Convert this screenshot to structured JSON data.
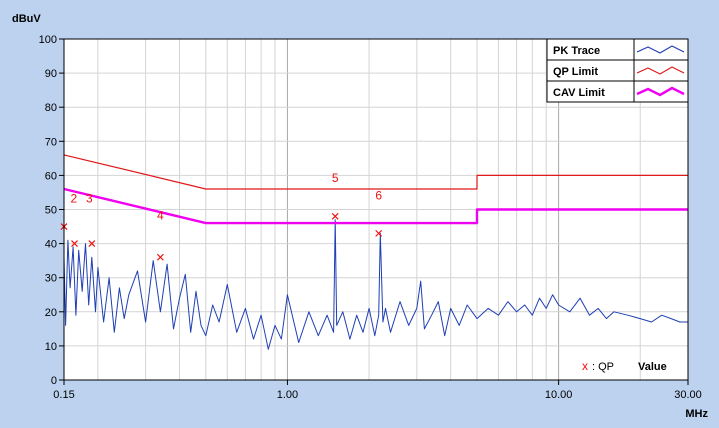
{
  "chart_data": {
    "type": "line",
    "ylabel": "dBuV",
    "xlabel": "MHz",
    "x_scale": "log",
    "xlim": [
      0.15,
      30
    ],
    "ylim": [
      0,
      100
    ],
    "grid": true,
    "legend_position": "top-right",
    "x_tick_labels": [
      {
        "value": 0.15,
        "label": "0.15"
      },
      {
        "value": 1,
        "label": "1.00"
      },
      {
        "value": 10,
        "label": "10.00"
      },
      {
        "value": 30,
        "label": "30.00"
      }
    ],
    "y_ticks": [
      0,
      10,
      20,
      30,
      40,
      50,
      60,
      70,
      80,
      90,
      100
    ],
    "y_tick_labels": [
      "0",
      "10",
      "20",
      "30",
      "40",
      "50",
      "60",
      "70",
      "80",
      "90",
      "100"
    ],
    "series": [
      {
        "name": "PK Trace",
        "color": "#1f3fb5",
        "x": [
          0.15,
          0.152,
          0.155,
          0.158,
          0.162,
          0.166,
          0.17,
          0.175,
          0.18,
          0.185,
          0.19,
          0.196,
          0.2,
          0.21,
          0.22,
          0.23,
          0.24,
          0.25,
          0.26,
          0.28,
          0.3,
          0.32,
          0.34,
          0.36,
          0.38,
          0.4,
          0.42,
          0.44,
          0.46,
          0.48,
          0.5,
          0.53,
          0.56,
          0.6,
          0.65,
          0.7,
          0.75,
          0.8,
          0.85,
          0.9,
          0.95,
          1.0,
          1.1,
          1.2,
          1.3,
          1.4,
          1.48,
          1.5,
          1.52,
          1.6,
          1.7,
          1.8,
          1.9,
          2.0,
          2.1,
          2.17,
          2.2,
          2.25,
          2.3,
          2.4,
          2.6,
          2.8,
          3.0,
          3.1,
          3.2,
          3.4,
          3.6,
          3.8,
          4.0,
          4.3,
          4.6,
          5.0,
          5.5,
          6.0,
          6.5,
          7.0,
          7.5,
          8.0,
          8.5,
          9.0,
          9.5,
          10.0,
          11.0,
          12.0,
          13.0,
          14.0,
          15.0,
          16.0,
          18.0,
          20.0,
          22.0,
          24.0,
          26.0,
          28.0,
          30.0
        ],
        "values": [
          36,
          16,
          41,
          27,
          39,
          19,
          38,
          26,
          40,
          22,
          36,
          20,
          33,
          17,
          30,
          14,
          27,
          18,
          25,
          32,
          17,
          35,
          20,
          34,
          15,
          24,
          31,
          14,
          26,
          16,
          13,
          22,
          17,
          28,
          14,
          21,
          12,
          19,
          9,
          16,
          12,
          25,
          11,
          20,
          13,
          19,
          14,
          47,
          16,
          20,
          12,
          19,
          14,
          21,
          13,
          19,
          43,
          17,
          21,
          14,
          23,
          16,
          21,
          29,
          15,
          19,
          23,
          13,
          21,
          16,
          22,
          18,
          21,
          19,
          23,
          20,
          22,
          19,
          24,
          21,
          25,
          22,
          20,
          24,
          19,
          21,
          18,
          20,
          19,
          18,
          17,
          19,
          18,
          17,
          17
        ]
      },
      {
        "name": "QP Limit",
        "color": "#e01818",
        "x": [
          0.15,
          0.5,
          5,
          5,
          30
        ],
        "values": [
          66,
          56,
          56,
          60,
          60
        ]
      },
      {
        "name": "CAV Limit",
        "color": "#f000f0",
        "x": [
          0.15,
          0.5,
          5,
          5,
          30
        ],
        "values": [
          56,
          46,
          46,
          50,
          50
        ]
      }
    ],
    "qp_markers": [
      {
        "x": 0.15,
        "y": 45
      },
      {
        "x": 0.164,
        "y": 40
      },
      {
        "x": 0.19,
        "y": 40
      },
      {
        "x": 0.34,
        "y": 36
      },
      {
        "x": 1.5,
        "y": 48
      },
      {
        "x": 2.17,
        "y": 43
      }
    ],
    "annotations": [
      {
        "text": "2",
        "x": 0.163,
        "y": 52
      },
      {
        "text": "3",
        "x": 0.186,
        "y": 52
      },
      {
        "text": "4",
        "x": 0.34,
        "y": 47
      },
      {
        "text": "5",
        "x": 1.5,
        "y": 58
      },
      {
        "text": "6",
        "x": 2.17,
        "y": 53
      }
    ],
    "qp_note": {
      "symbol": "x",
      "text": ": QP",
      "value_label": "Value"
    }
  }
}
